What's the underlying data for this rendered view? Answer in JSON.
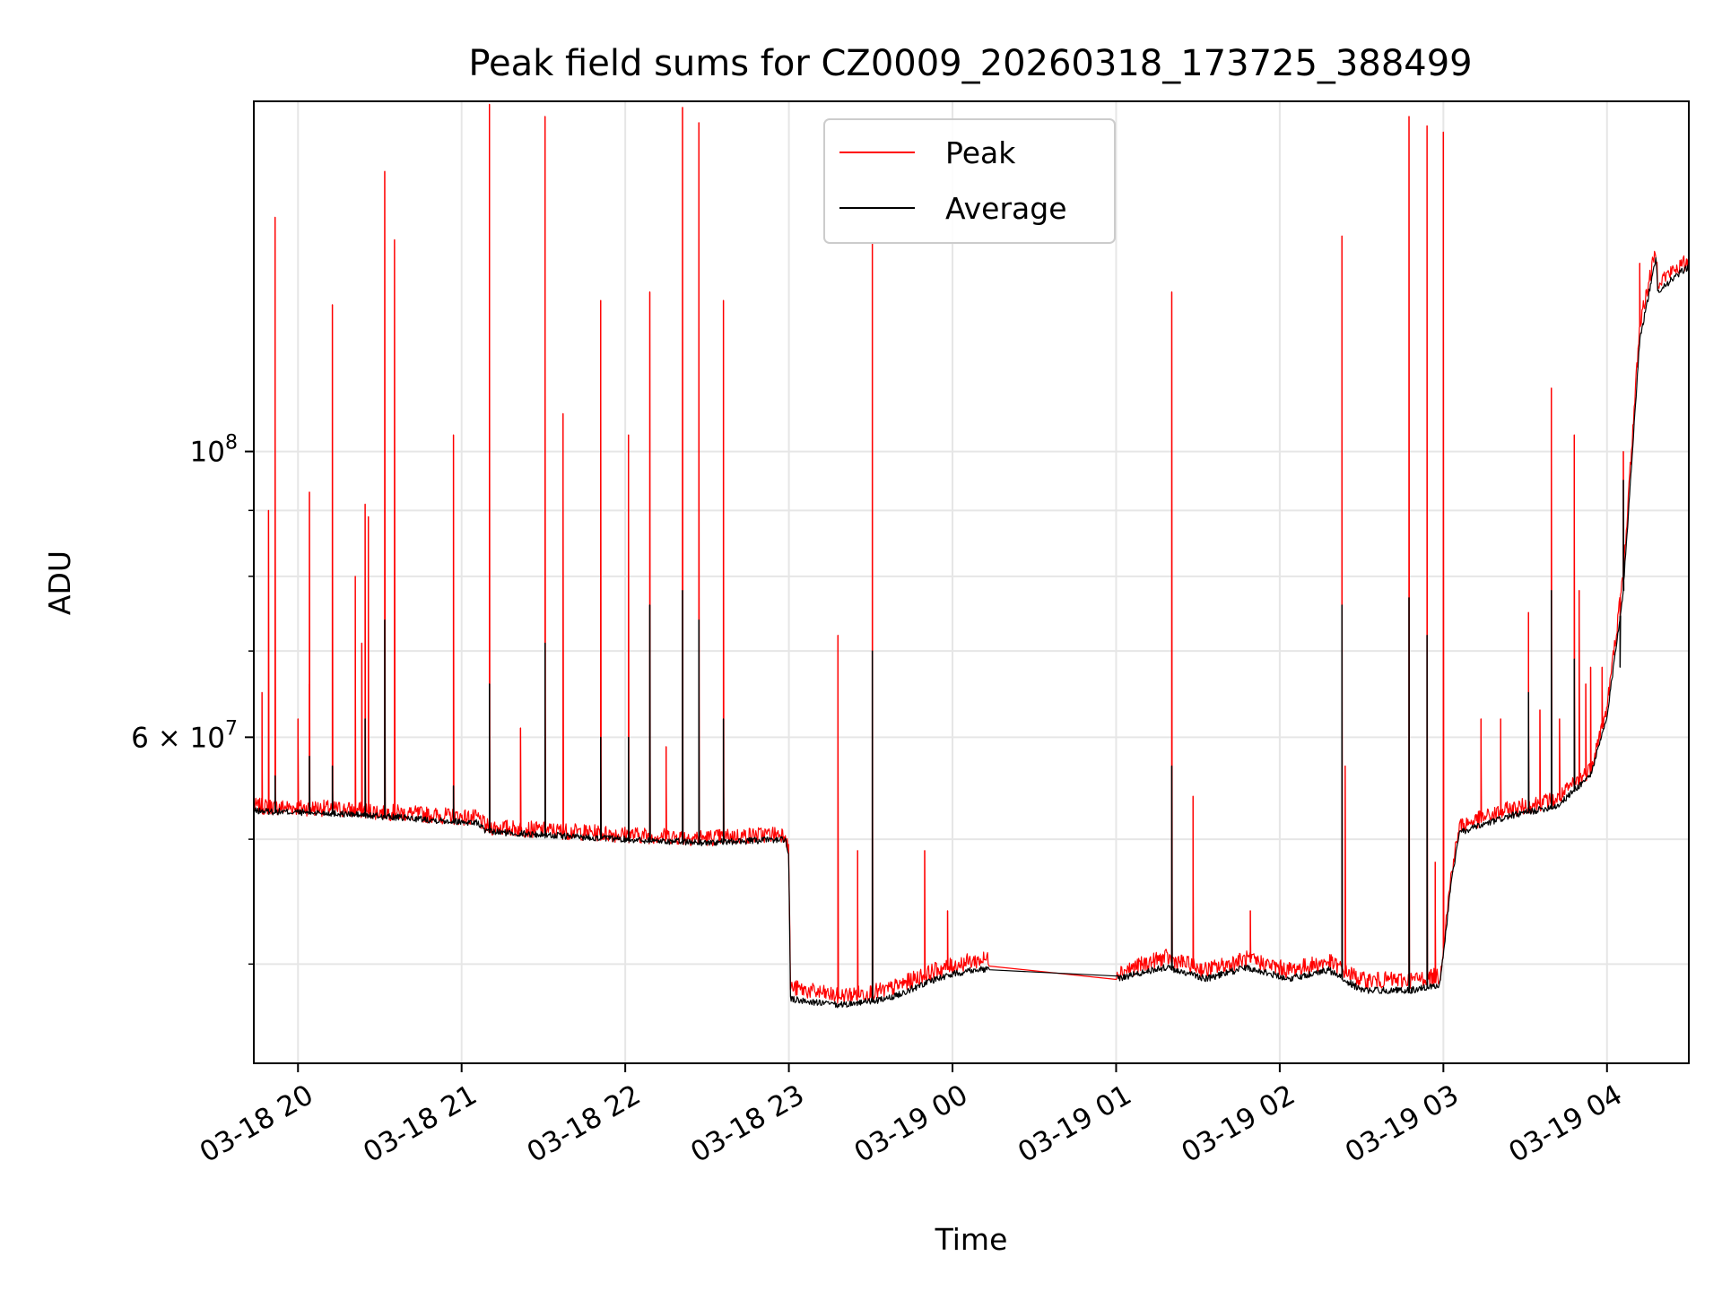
{
  "chart_data": {
    "type": "line",
    "title": "Peak field sums for CZ0009_20260318_173725_388499",
    "xlabel": "Time",
    "ylabel": "ADU",
    "yscale": "log",
    "grid": true,
    "legend_position": "top-center",
    "xlim": [
      19.73,
      28.5
    ],
    "ylim": [
      33500000,
      187000000
    ],
    "x_unit": "hours since 2026-03-18 00:00",
    "x_ticks": [
      {
        "value": 20,
        "label": "03-18 20"
      },
      {
        "value": 21,
        "label": "03-18 21"
      },
      {
        "value": 22,
        "label": "03-18 22"
      },
      {
        "value": 23,
        "label": "03-18 23"
      },
      {
        "value": 24,
        "label": "03-19 00"
      },
      {
        "value": 25,
        "label": "03-19 01"
      },
      {
        "value": 26,
        "label": "03-19 02"
      },
      {
        "value": 27,
        "label": "03-19 03"
      },
      {
        "value": 28,
        "label": "03-19 04"
      }
    ],
    "y_major_ticks": [
      {
        "value": 100000000,
        "base": "10",
        "exp": "8",
        "coef": ""
      },
      {
        "value": 60000000,
        "base": "10",
        "exp": "7",
        "coef": "6"
      }
    ],
    "y_minor_ticks": [
      40000000,
      50000000,
      70000000,
      80000000,
      90000000
    ],
    "series": [
      {
        "name": "Peak",
        "color": "#ff0000",
        "baseline": [
          [
            19.73,
            52800000
          ],
          [
            20.2,
            52600000
          ],
          [
            20.5,
            52300000
          ],
          [
            20.8,
            52000000
          ],
          [
            21.1,
            51700000
          ],
          [
            21.15,
            50900000
          ],
          [
            21.5,
            50600000
          ],
          [
            22.0,
            50200000
          ],
          [
            22.5,
            49900000
          ],
          [
            22.98,
            50300000
          ],
          [
            23.0,
            48500000
          ],
          [
            23.01,
            38200000
          ],
          [
            23.3,
            37600000
          ],
          [
            23.6,
            38000000
          ],
          [
            23.9,
            39400000
          ],
          [
            24.1,
            40000000
          ],
          [
            24.23,
            40200000
          ],
          [
            25.0,
            39200000
          ],
          [
            25.3,
            40300000
          ],
          [
            25.55,
            39400000
          ],
          [
            25.8,
            40200000
          ],
          [
            26.05,
            39400000
          ],
          [
            26.3,
            40000000
          ],
          [
            26.5,
            38700000
          ],
          [
            26.8,
            38700000
          ],
          [
            26.98,
            39000000
          ],
          [
            27.05,
            47000000
          ],
          [
            27.1,
            51000000
          ],
          [
            27.4,
            52500000
          ],
          [
            27.7,
            53500000
          ],
          [
            27.9,
            56500000
          ],
          [
            28.0,
            63000000
          ],
          [
            28.1,
            80000000
          ],
          [
            28.2,
            125000000
          ],
          [
            28.3,
            143000000
          ],
          [
            28.31,
            135000000
          ],
          [
            28.5,
            140000000
          ]
        ],
        "spikes": [
          [
            19.78,
            65000000
          ],
          [
            19.82,
            90000000
          ],
          [
            19.86,
            65000000
          ],
          [
            19.86,
            152000000
          ],
          [
            20.0,
            62000000
          ],
          [
            20.07,
            66000000
          ],
          [
            20.07,
            93000000
          ],
          [
            20.21,
            130000000
          ],
          [
            20.35,
            80000000
          ],
          [
            20.39,
            71000000
          ],
          [
            20.41,
            91000000
          ],
          [
            20.43,
            89000000
          ],
          [
            20.53,
            165000000
          ],
          [
            20.59,
            146000000
          ],
          [
            20.95,
            103000000
          ],
          [
            21.17,
            186000000
          ],
          [
            21.36,
            61000000
          ],
          [
            21.51,
            182000000
          ],
          [
            21.62,
            107000000
          ],
          [
            21.85,
            131000000
          ],
          [
            22.02,
            103000000
          ],
          [
            22.15,
            133000000
          ],
          [
            22.25,
            59000000
          ],
          [
            22.35,
            185000000
          ],
          [
            22.45,
            180000000
          ],
          [
            22.6,
            131000000
          ],
          [
            23.3,
            72000000
          ],
          [
            23.42,
            49000000
          ],
          [
            23.51,
            145000000
          ],
          [
            23.83,
            49000000
          ],
          [
            23.97,
            44000000
          ],
          [
            25.34,
            133000000
          ],
          [
            25.47,
            54000000
          ],
          [
            25.82,
            44000000
          ],
          [
            26.38,
            147000000
          ],
          [
            26.4,
            57000000
          ],
          [
            26.79,
            182000000
          ],
          [
            26.9,
            179000000
          ],
          [
            26.95,
            48000000
          ],
          [
            27.0,
            177000000
          ],
          [
            27.23,
            62000000
          ],
          [
            27.35,
            62000000
          ],
          [
            27.52,
            75000000
          ],
          [
            27.59,
            63000000
          ],
          [
            27.66,
            112000000
          ],
          [
            27.71,
            62000000
          ],
          [
            27.8,
            103000000
          ],
          [
            27.83,
            78000000
          ],
          [
            27.87,
            66000000
          ],
          [
            27.9,
            68000000
          ],
          [
            27.97,
            68000000
          ],
          [
            28.08,
            74000000
          ],
          [
            28.1,
            100000000
          ],
          [
            28.2,
            140000000
          ]
        ]
      },
      {
        "name": "Average",
        "color": "#000000",
        "baseline": [
          [
            19.73,
            52500000
          ],
          [
            20.2,
            52300000
          ],
          [
            20.5,
            52000000
          ],
          [
            20.8,
            51700000
          ],
          [
            21.1,
            51400000
          ],
          [
            21.15,
            50600000
          ],
          [
            21.5,
            50300000
          ],
          [
            22.0,
            49900000
          ],
          [
            22.5,
            49600000
          ],
          [
            22.98,
            49900000
          ],
          [
            23.0,
            48200000
          ],
          [
            23.01,
            37500000
          ],
          [
            23.3,
            37100000
          ],
          [
            23.6,
            37500000
          ],
          [
            23.9,
            38900000
          ],
          [
            24.1,
            39500000
          ],
          [
            24.23,
            39600000
          ],
          [
            25.0,
            38900000
          ],
          [
            25.3,
            39700000
          ],
          [
            25.55,
            38900000
          ],
          [
            25.8,
            39700000
          ],
          [
            26.05,
            38900000
          ],
          [
            26.3,
            39500000
          ],
          [
            26.5,
            38100000
          ],
          [
            26.8,
            38100000
          ],
          [
            26.98,
            38500000
          ],
          [
            27.05,
            46500000
          ],
          [
            27.1,
            50500000
          ],
          [
            27.4,
            52000000
          ],
          [
            27.7,
            53000000
          ],
          [
            27.9,
            56000000
          ],
          [
            28.0,
            62000000
          ],
          [
            28.1,
            78000000
          ],
          [
            28.2,
            122000000
          ],
          [
            28.3,
            141000000
          ],
          [
            28.31,
            133000000
          ],
          [
            28.5,
            139000000
          ]
        ],
        "spikes": [
          [
            19.86,
            56000000
          ],
          [
            20.07,
            58000000
          ],
          [
            20.21,
            57000000
          ],
          [
            20.41,
            62000000
          ],
          [
            20.53,
            74000000
          ],
          [
            20.95,
            55000000
          ],
          [
            21.17,
            66000000
          ],
          [
            21.51,
            71000000
          ],
          [
            21.85,
            60000000
          ],
          [
            22.02,
            60000000
          ],
          [
            22.15,
            76000000
          ],
          [
            22.35,
            78000000
          ],
          [
            22.45,
            74000000
          ],
          [
            22.6,
            62000000
          ],
          [
            23.51,
            70000000
          ],
          [
            25.34,
            57000000
          ],
          [
            26.38,
            76000000
          ],
          [
            26.79,
            77000000
          ],
          [
            26.9,
            72000000
          ],
          [
            27.52,
            65000000
          ],
          [
            27.66,
            78000000
          ],
          [
            27.8,
            69000000
          ],
          [
            28.08,
            68000000
          ],
          [
            28.1,
            95000000
          ]
        ]
      }
    ]
  }
}
